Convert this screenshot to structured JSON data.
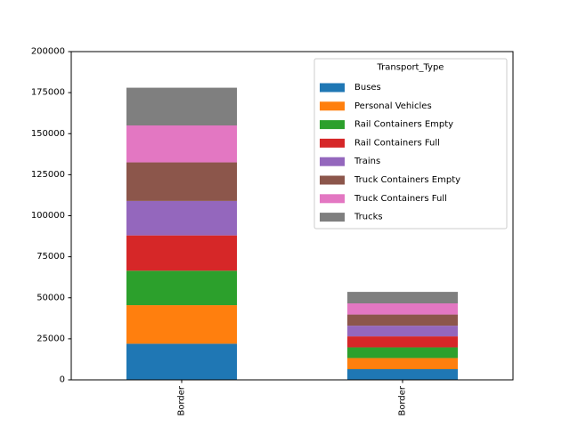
{
  "chart_data": {
    "type": "bar",
    "stacked": true,
    "categories": [
      "Border",
      "Border"
    ],
    "ylim": [
      0,
      200000
    ],
    "yticks": [
      0,
      25000,
      50000,
      75000,
      100000,
      125000,
      150000,
      175000,
      200000
    ],
    "grid": false,
    "legend": {
      "title": "Transport_Type",
      "placement": "top-right"
    },
    "series": [
      {
        "name": "Buses",
        "color": "#1f77b4",
        "values": [
          22000,
          6500
        ]
      },
      {
        "name": "Personal Vehicles",
        "color": "#ff7f0e",
        "values": [
          23500,
          6800
        ]
      },
      {
        "name": "Rail Containers Empty",
        "color": "#2ca02c",
        "values": [
          21000,
          6500
        ]
      },
      {
        "name": "Rail Containers Full",
        "color": "#d62728",
        "values": [
          21500,
          6700
        ]
      },
      {
        "name": "Trains",
        "color": "#9467bd",
        "values": [
          21000,
          6500
        ]
      },
      {
        "name": "Truck Containers Empty",
        "color": "#8c564b",
        "values": [
          23500,
          6800
        ]
      },
      {
        "name": "Truck Containers Full",
        "color": "#e377c2",
        "values": [
          22500,
          6800
        ]
      },
      {
        "name": "Trucks",
        "color": "#7f7f7f",
        "values": [
          23000,
          7000
        ]
      }
    ]
  }
}
